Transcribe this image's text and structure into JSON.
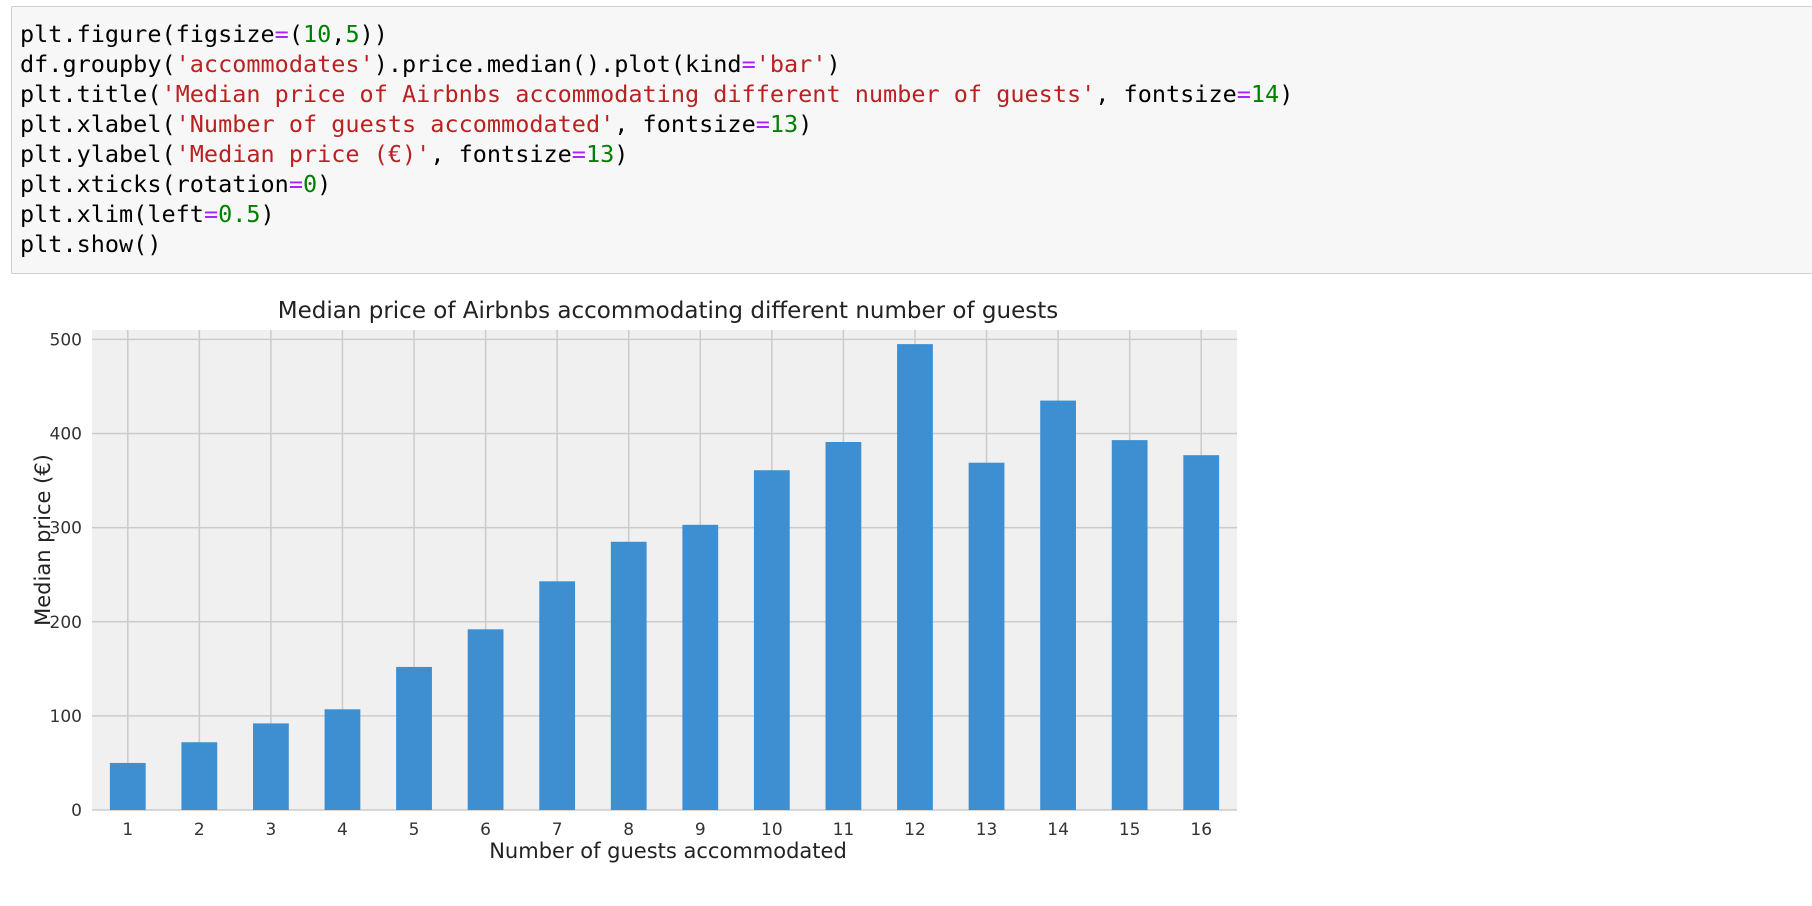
{
  "code_cell": {
    "lines": [
      [
        {
          "t": "plt.figure(figsize"
        },
        {
          "t": "=",
          "c": "op"
        },
        {
          "t": "("
        },
        {
          "t": "10",
          "c": "num"
        },
        {
          "t": ","
        },
        {
          "t": "5",
          "c": "num"
        },
        {
          "t": "))"
        }
      ],
      [
        {
          "t": "df.groupby("
        },
        {
          "t": "'accommodates'",
          "c": "str"
        },
        {
          "t": ").price.median().plot(kind"
        },
        {
          "t": "=",
          "c": "op"
        },
        {
          "t": "'bar'",
          "c": "str"
        },
        {
          "t": ")"
        }
      ],
      [
        {
          "t": "plt.title("
        },
        {
          "t": "'Median price of Airbnbs accommodating different number of guests'",
          "c": "str"
        },
        {
          "t": ", fontsize"
        },
        {
          "t": "=",
          "c": "op"
        },
        {
          "t": "14",
          "c": "num"
        },
        {
          "t": ")"
        }
      ],
      [
        {
          "t": "plt.xlabel("
        },
        {
          "t": "'Number of guests accommodated'",
          "c": "str"
        },
        {
          "t": ", fontsize"
        },
        {
          "t": "=",
          "c": "op"
        },
        {
          "t": "13",
          "c": "num"
        },
        {
          "t": ")"
        }
      ],
      [
        {
          "t": "plt.ylabel("
        },
        {
          "t": "'Median price (€)'",
          "c": "str"
        },
        {
          "t": ", fontsize"
        },
        {
          "t": "=",
          "c": "op"
        },
        {
          "t": "13",
          "c": "num"
        },
        {
          "t": ")"
        }
      ],
      [
        {
          "t": "plt.xticks(rotation"
        },
        {
          "t": "=",
          "c": "op"
        },
        {
          "t": "0",
          "c": "num"
        },
        {
          "t": ")"
        }
      ],
      [
        {
          "t": "plt.xlim(left"
        },
        {
          "t": "=",
          "c": "op"
        },
        {
          "t": "0.5",
          "c": "num"
        },
        {
          "t": ")"
        }
      ],
      [
        {
          "t": "plt.show()"
        }
      ]
    ]
  },
  "colors": {
    "bar": "#3d8fd1",
    "plot_bg": "#f0f0f0",
    "grid": "#cbcbcb",
    "code_string": "#ba2121",
    "code_operator": "#aa22ff",
    "code_number": "#008000"
  },
  "chart_data": {
    "type": "bar",
    "title": "Median price of Airbnbs accommodating different number of guests",
    "xlabel": "Number of guests accommodated",
    "ylabel": "Median price (€)",
    "categories": [
      "1",
      "2",
      "3",
      "4",
      "5",
      "6",
      "7",
      "8",
      "9",
      "10",
      "11",
      "12",
      "13",
      "14",
      "15",
      "16"
    ],
    "values": [
      50,
      72,
      92,
      107,
      152,
      192,
      243,
      285,
      303,
      361,
      391,
      495,
      369,
      435,
      393,
      377
    ],
    "ylim": [
      0,
      510
    ],
    "yticks": [
      0,
      100,
      200,
      300,
      400,
      500
    ],
    "grid": true,
    "style": "fivethirtyeight"
  }
}
